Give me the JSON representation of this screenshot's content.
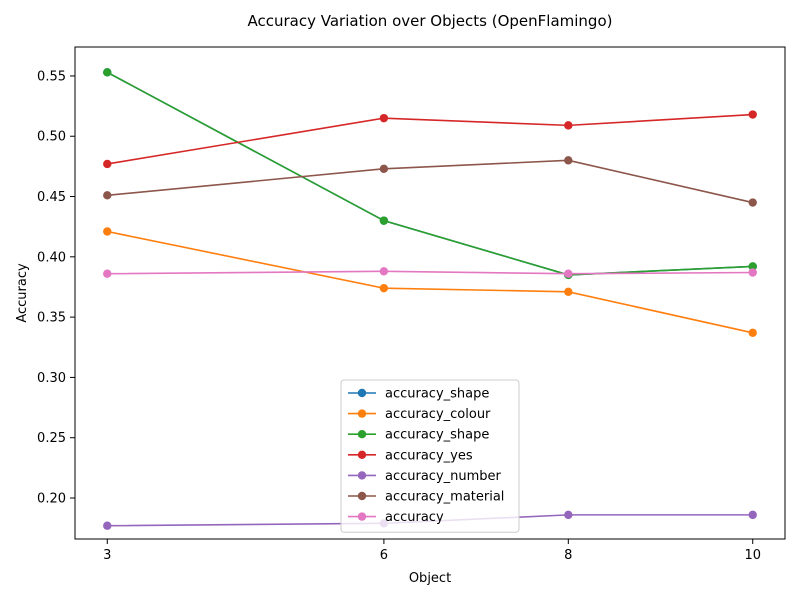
{
  "chart_data": {
    "type": "line",
    "title": "Accuracy Variation over Objects (OpenFlamingo)",
    "xlabel": "Object",
    "ylabel": "Accuracy",
    "x": [
      3,
      6,
      8,
      10
    ],
    "xticks": [
      "3",
      "6",
      "8",
      "10"
    ],
    "yticks": [
      "0.20",
      "0.25",
      "0.30",
      "0.35",
      "0.40",
      "0.45",
      "0.50",
      "0.55"
    ],
    "ylim": [
      0.166,
      0.574
    ],
    "grid": false,
    "legend_position": "lower-center",
    "series": [
      {
        "name": "accuracy_shape",
        "color": "#1f77b4",
        "values": [
          0.553,
          0.43,
          0.385,
          0.392
        ]
      },
      {
        "name": "accuracy_colour",
        "color": "#ff7f0e",
        "values": [
          0.421,
          0.374,
          0.371,
          0.337
        ]
      },
      {
        "name": "accuracy_shape",
        "color": "#2ca02c",
        "values": [
          0.553,
          0.43,
          0.385,
          0.392
        ]
      },
      {
        "name": "accuracy_yes",
        "color": "#d62728",
        "values": [
          0.477,
          0.515,
          0.509,
          0.518
        ]
      },
      {
        "name": "accuracy_number",
        "color": "#9467bd",
        "values": [
          0.177,
          0.179,
          0.186,
          0.186
        ]
      },
      {
        "name": "accuracy_material",
        "color": "#8c564b",
        "values": [
          0.451,
          0.473,
          0.48,
          0.445
        ]
      },
      {
        "name": "accuracy",
        "color": "#e377c2",
        "values": [
          0.386,
          0.388,
          0.386,
          0.387
        ]
      }
    ]
  }
}
